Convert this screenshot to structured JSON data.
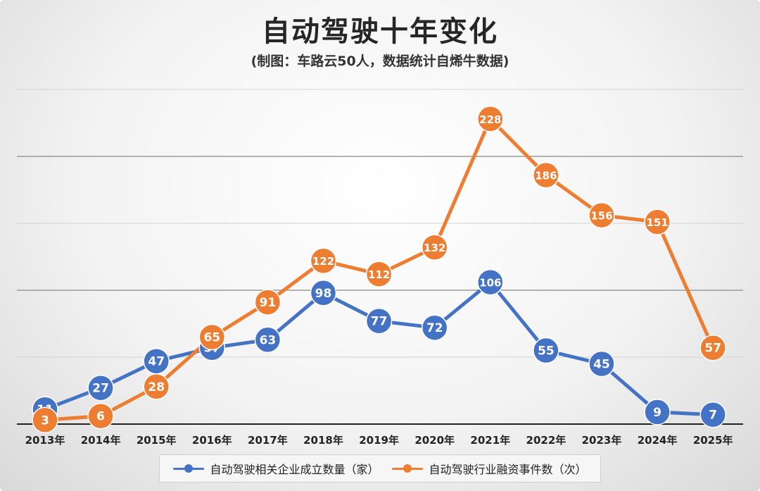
{
  "chart_data": {
    "type": "line",
    "title": "自动驾驶十年变化",
    "subtitle": "(制图：车路云50人，数据统计自烯牛数据)",
    "categories": [
      "2013年",
      "2014年",
      "2015年",
      "2016年",
      "2017年",
      "2018年",
      "2019年",
      "2020年",
      "2021年",
      "2022年",
      "2023年",
      "2024年",
      "2025年"
    ],
    "series": [
      {
        "name": "自动驾驶相关企业成立数量（家）",
        "color": "#4472C4",
        "values": [
          11,
          27,
          47,
          57,
          63,
          98,
          77,
          72,
          106,
          55,
          45,
          9,
          7
        ]
      },
      {
        "name": "自动驾驶行业融资事件数（次）",
        "color": "#ED7D31",
        "values": [
          3,
          6,
          28,
          65,
          91,
          122,
          112,
          132,
          228,
          186,
          156,
          151,
          57
        ]
      }
    ],
    "ylim": [
      0,
      250
    ],
    "grid": true,
    "legend": "bottom",
    "data_labels": true
  }
}
